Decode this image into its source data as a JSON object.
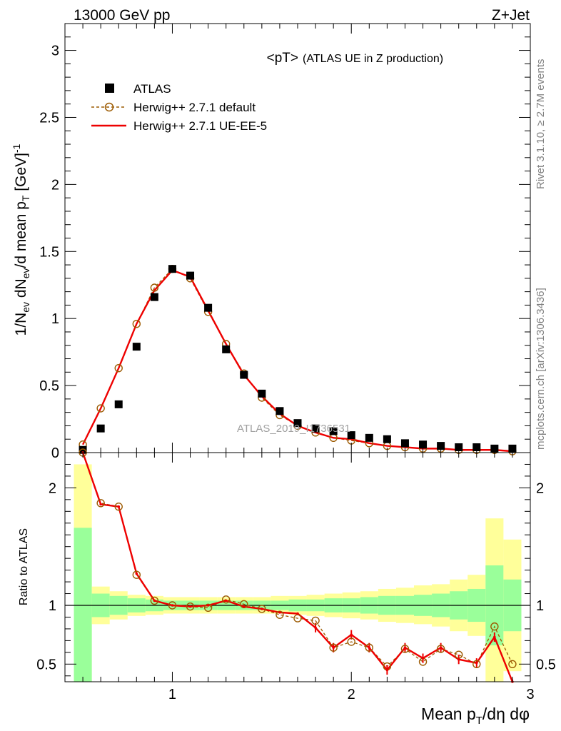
{
  "header": {
    "left": "13000 GeV pp",
    "right": "Z+Jet"
  },
  "plot_title": "<pT>",
  "plot_subtitle": "(ATLAS UE in Z production)",
  "watermark": "ATLAS_2019_I1736531",
  "side_labels": {
    "rivet": "Rivet 3.1.10, ≥ 2.7M events",
    "mcplots": "mcplots.cern.ch [arXiv:1306.3436]"
  },
  "colors": {
    "data": "#000000",
    "default": "#9c5a00",
    "ue5": "#ee0000",
    "band_inner": "#9aff9a",
    "band_outer": "#ffff9a"
  },
  "chart_data": [
    {
      "type": "line",
      "ylabel": "1/N_ev dN_ev/d mean p_T [GeV]^-1",
      "xlabel": "Mean p_T/dη dφ",
      "xlim": [
        0.4,
        3.0
      ],
      "ylim": [
        0,
        3.2
      ],
      "yticks": [
        "0",
        "0.5",
        "1",
        "1.5",
        "2",
        "2.5",
        "3"
      ],
      "legend": [
        "ATLAS",
        "Herwig++ 2.7.1 default",
        "Herwig++ 2.7.1 UE-EE-5"
      ],
      "legend_position": "top-left",
      "x": [
        0.5,
        0.6,
        0.7,
        0.8,
        0.9,
        1.0,
        1.1,
        1.2,
        1.3,
        1.4,
        1.5,
        1.6,
        1.7,
        1.8,
        1.9,
        2.0,
        2.1,
        2.2,
        2.3,
        2.4,
        2.5,
        2.6,
        2.7,
        2.8,
        2.9
      ],
      "series": [
        {
          "name": "ATLAS",
          "style": "marker",
          "values": [
            0.02,
            0.18,
            0.36,
            0.79,
            1.16,
            1.37,
            1.32,
            1.08,
            0.77,
            0.58,
            0.44,
            0.31,
            0.22,
            0.18,
            0.16,
            0.13,
            0.11,
            0.1,
            0.07,
            0.06,
            0.05,
            0.04,
            0.04,
            0.03,
            0.03
          ]
        },
        {
          "name": "Herwig++ 2.7.1 default",
          "style": "dashed-circles",
          "values": [
            0.06,
            0.33,
            0.63,
            0.96,
            1.23,
            1.37,
            1.3,
            1.05,
            0.81,
            0.59,
            0.41,
            0.28,
            0.2,
            0.15,
            0.11,
            0.09,
            0.07,
            0.05,
            0.04,
            0.03,
            0.03,
            0.02,
            0.02,
            0.02,
            0.01
          ]
        },
        {
          "name": "Herwig++ 2.7.1 UE-EE-5",
          "style": "line",
          "values": [
            0.06,
            0.33,
            0.63,
            0.96,
            1.21,
            1.36,
            1.31,
            1.06,
            0.81,
            0.58,
            0.42,
            0.29,
            0.2,
            0.15,
            0.11,
            0.1,
            0.07,
            0.05,
            0.04,
            0.03,
            0.03,
            0.02,
            0.02,
            0.02,
            0.01
          ]
        }
      ]
    },
    {
      "type": "line",
      "ylabel": "Ratio to ATLAS",
      "xlabel": "Mean p_T/dη dφ",
      "xlim": [
        0.4,
        3.0
      ],
      "ylim": [
        0.35,
        2.3
      ],
      "yticks": [
        "0.5",
        "1",
        "2"
      ],
      "xticks": [
        "1",
        "2",
        "3"
      ],
      "x": [
        0.5,
        0.6,
        0.7,
        0.8,
        0.9,
        1.0,
        1.1,
        1.2,
        1.3,
        1.4,
        1.5,
        1.6,
        1.7,
        1.8,
        1.9,
        2.0,
        2.1,
        2.2,
        2.3,
        2.4,
        2.5,
        2.6,
        2.7,
        2.8,
        2.9
      ],
      "band_inner": {
        "lo": [
          0.34,
          0.9,
          0.92,
          0.94,
          0.95,
          0.96,
          0.96,
          0.96,
          0.96,
          0.96,
          0.96,
          0.96,
          0.95,
          0.95,
          0.94,
          0.94,
          0.93,
          0.92,
          0.92,
          0.91,
          0.9,
          0.88,
          0.86,
          0.66,
          0.78
        ],
        "hi": [
          1.66,
          1.1,
          1.08,
          1.06,
          1.05,
          1.04,
          1.04,
          1.04,
          1.04,
          1.04,
          1.04,
          1.04,
          1.05,
          1.05,
          1.06,
          1.06,
          1.07,
          1.08,
          1.08,
          1.09,
          1.1,
          1.12,
          1.14,
          1.34,
          1.22
        ]
      },
      "band_outer": {
        "lo": [
          0.34,
          0.84,
          0.88,
          0.91,
          0.92,
          0.93,
          0.93,
          0.93,
          0.93,
          0.93,
          0.93,
          0.93,
          0.92,
          0.91,
          0.9,
          0.89,
          0.88,
          0.86,
          0.85,
          0.84,
          0.82,
          0.78,
          0.74,
          0.34,
          0.44
        ],
        "hi": [
          2.2,
          1.16,
          1.12,
          1.09,
          1.08,
          1.07,
          1.07,
          1.07,
          1.07,
          1.07,
          1.07,
          1.08,
          1.08,
          1.09,
          1.1,
          1.11,
          1.12,
          1.14,
          1.15,
          1.17,
          1.18,
          1.22,
          1.26,
          1.74,
          1.56
        ]
      },
      "series": [
        {
          "name": "Herwig++ 2.7.1 default",
          "style": "dashed-circles",
          "values": [
            2.45,
            1.87,
            1.84,
            1.26,
            1.04,
            1.0,
            0.99,
            0.98,
            1.05,
            1.01,
            0.97,
            0.92,
            0.89,
            0.87,
            0.64,
            0.69,
            0.64,
            0.48,
            0.63,
            0.52,
            0.63,
            0.58,
            0.5,
            0.82,
            0.5
          ]
        },
        {
          "name": "Herwig++ 2.7.1 UE-EE-5",
          "style": "line",
          "values": [
            2.45,
            1.86,
            1.84,
            1.27,
            1.04,
            1.0,
            0.99,
            1.0,
            1.04,
            0.99,
            0.97,
            0.94,
            0.93,
            0.81,
            0.64,
            0.75,
            0.64,
            0.45,
            0.64,
            0.55,
            0.64,
            0.54,
            0.51,
            0.73,
            0.33
          ]
        }
      ]
    }
  ]
}
